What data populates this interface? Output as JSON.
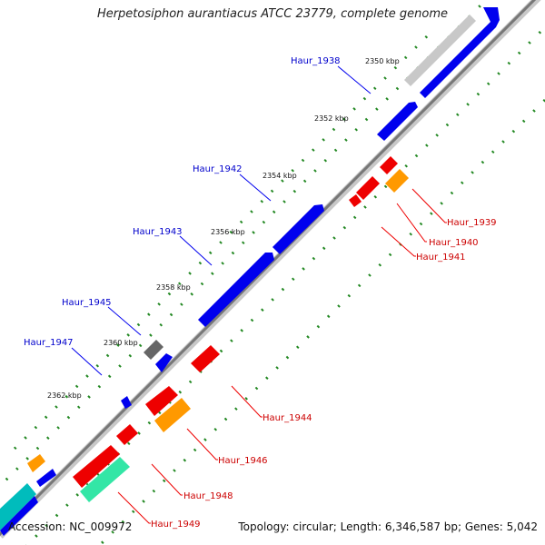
{
  "title": "Herpetosiphon aurantiacus ATCC 23779, complete genome",
  "footer": {
    "accession": "Accession: NC_009972",
    "summary": "Topology: circular; Length: 6,346,587 bp; Genes: 5,042"
  },
  "colors": {
    "forward_gene": "#0000ee",
    "reverse_gene": "#ee0000",
    "orange_gene": "#ff9900",
    "grey_gene": "#666666",
    "light_grey_gene": "#c8c8c8",
    "teal_gene": "#00bcbc",
    "mint_gene": "#33e6a6",
    "forward_label": "#0000cc",
    "reverse_label": "#cc0000",
    "backbone": "#777777",
    "dots": "#228822"
  },
  "ticks": [
    {
      "label": "2350 kbp"
    },
    {
      "label": "2352 kbp"
    },
    {
      "label": "2354 kbp"
    },
    {
      "label": "2356 kbp"
    },
    {
      "label": "2358 kbp"
    },
    {
      "label": "2360 kbp"
    },
    {
      "label": "2362 kbp"
    }
  ],
  "forward_labels": [
    {
      "text": "Haur_1938"
    },
    {
      "text": "Haur_1942"
    },
    {
      "text": "Haur_1943"
    },
    {
      "text": "Haur_1945"
    },
    {
      "text": "Haur_1947"
    }
  ],
  "reverse_labels": [
    {
      "text": "Haur_1939"
    },
    {
      "text": "Haur_1940"
    },
    {
      "text": "Haur_1941"
    },
    {
      "text": "Haur_1944"
    },
    {
      "text": "Haur_1946"
    },
    {
      "text": "Haur_1948"
    },
    {
      "text": "Haur_1949"
    }
  ]
}
